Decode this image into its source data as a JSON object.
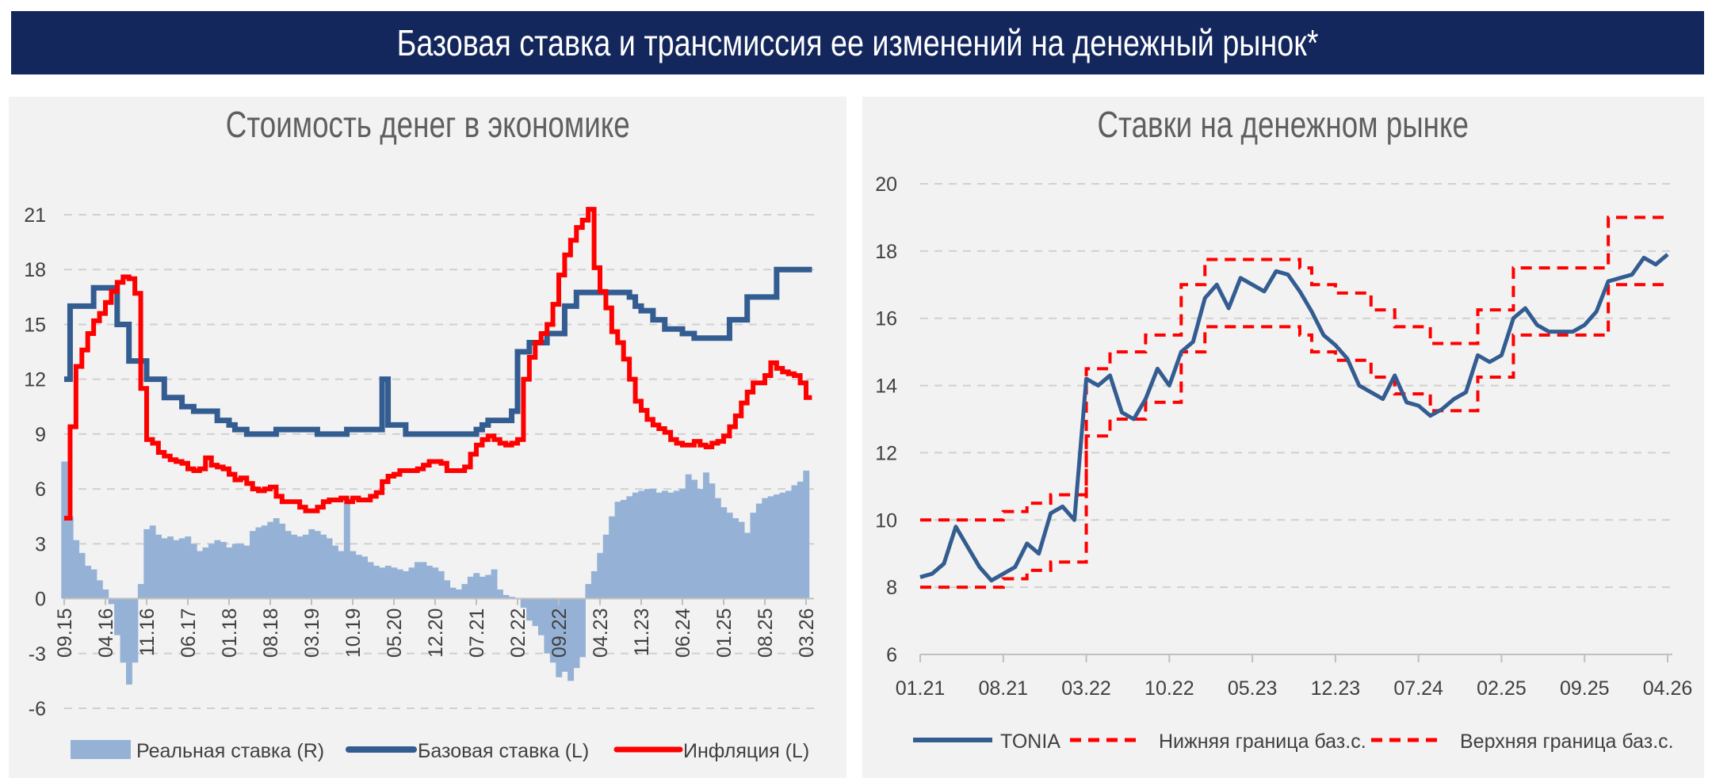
{
  "header": {
    "title": "Базовая ставка и трансмиссия ее изменений на денежный рынок*"
  },
  "colors": {
    "header_bg": "#13275c",
    "base_rate": "#335c91",
    "inflation": "#ff0000",
    "real_rate": "#95b2d6",
    "tonia": "#335c91",
    "bounds": "#ff0000",
    "panel_bg": "#f2f2f2"
  },
  "chart_data": [
    {
      "type": "bar+line",
      "title": "Стоимость денег в экономике",
      "xlabel": "",
      "ylabel": "",
      "ylim": [
        -6,
        21
      ],
      "y_ticks": [
        "-6",
        "-3",
        "0",
        "3",
        "6",
        "9",
        "12",
        "15",
        "18",
        "21"
      ],
      "x_ticks": [
        "09.15",
        "04.16",
        "11.16",
        "06.17",
        "01.18",
        "08.18",
        "03.19",
        "10.19",
        "05.20",
        "12.20",
        "07.21",
        "02.22",
        "09.22",
        "04.23",
        "11.23",
        "06.24",
        "01.25",
        "08.25",
        "03.26"
      ],
      "x_start": "09.15",
      "x_step": "1 month",
      "grid": true,
      "legend_position": "bottom",
      "legend": [
        "Реальная ставка (R)",
        "Базовая ставка (L)",
        "Инфляция (L)"
      ],
      "series": [
        {
          "name": "Реальная ставка (R)",
          "kind": "bar",
          "values": [
            7.5,
            4.5,
            3.2,
            2.5,
            1.8,
            1.6,
            1.0,
            0.5,
            -0.3,
            -2.0,
            -3.5,
            -4.7,
            -3.5,
            0.8,
            3.8,
            4.0,
            3.5,
            3.3,
            3.4,
            3.2,
            3.3,
            3.4,
            3.0,
            2.6,
            2.8,
            3.0,
            3.2,
            3.1,
            2.8,
            3.0,
            3.0,
            2.9,
            3.7,
            3.9,
            4.0,
            4.2,
            4.4,
            4.1,
            3.7,
            3.5,
            3.4,
            3.5,
            3.8,
            3.7,
            3.5,
            3.3,
            2.9,
            2.6,
            5.5,
            2.6,
            2.4,
            2.3,
            2.0,
            1.8,
            1.7,
            1.8,
            1.7,
            1.6,
            1.5,
            1.7,
            2.0,
            2.0,
            1.8,
            1.7,
            1.5,
            1.0,
            0.6,
            0.5,
            0.8,
            1.2,
            1.4,
            1.2,
            1.3,
            1.6,
            0.5,
            0.2,
            0.1,
            0.0,
            -0.5,
            -1.2,
            -1.5,
            -2.0,
            -3.0,
            -3.5,
            -4.3,
            -4.0,
            -4.5,
            -3.8,
            -3.2,
            0.8,
            1.5,
            2.5,
            3.5,
            4.5,
            5.3,
            5.4,
            5.6,
            5.8,
            5.9,
            6.0,
            6.0,
            5.8,
            5.9,
            5.8,
            5.9,
            6.0,
            6.8,
            6.5,
            6.0,
            6.9,
            6.3,
            5.5,
            5.0,
            4.7,
            4.4,
            4.2,
            3.6,
            4.7,
            5.2,
            5.5,
            5.6,
            5.7,
            5.8,
            5.9,
            6.2,
            6.4,
            7.0
          ]
        },
        {
          "name": "Базовая ставка (L)",
          "kind": "step",
          "values": [
            12,
            16,
            16,
            16,
            16,
            17,
            17,
            17,
            17,
            15,
            15,
            13,
            13,
            13,
            12,
            12,
            12,
            11,
            11,
            11,
            10.5,
            10.5,
            10.25,
            10.25,
            10.25,
            10.25,
            9.75,
            9.75,
            9.5,
            9.25,
            9.25,
            9,
            9,
            9,
            9,
            9,
            9.25,
            9.25,
            9.25,
            9.25,
            9.25,
            9.25,
            9.25,
            9,
            9,
            9,
            9,
            9,
            9.25,
            9.25,
            9.25,
            9.25,
            9.25,
            9.25,
            12,
            9.5,
            9.5,
            9.5,
            9,
            9,
            9,
            9,
            9,
            9,
            9,
            9,
            9,
            9,
            9,
            9,
            9.25,
            9.5,
            9.75,
            9.75,
            9.75,
            9.75,
            10.25,
            13.5,
            13.5,
            14,
            14,
            14,
            14.5,
            14.5,
            14.5,
            16,
            16,
            16.75,
            16.75,
            16.75,
            16.75,
            16.75,
            16.75,
            16.75,
            16.75,
            16.75,
            16.5,
            16,
            15.75,
            15.75,
            15.25,
            15.25,
            14.75,
            14.75,
            14.75,
            14.5,
            14.5,
            14.25,
            14.25,
            14.25,
            14.25,
            14.25,
            14.25,
            15.25,
            15.25,
            15.25,
            16.5,
            16.5,
            16.5,
            16.5,
            16.5,
            18,
            18,
            18,
            18,
            18,
            18
          ]
        },
        {
          "name": "Инфляция (L)",
          "kind": "step",
          "values": [
            4.4,
            9.4,
            12.7,
            13.6,
            14.5,
            15.2,
            15.6,
            16.2,
            16.8,
            17.3,
            17.6,
            17.5,
            16.7,
            11.5,
            8.7,
            8.5,
            8.0,
            7.8,
            7.6,
            7.5,
            7.4,
            7.1,
            7.0,
            7.1,
            7.7,
            7.3,
            7.2,
            7.1,
            6.8,
            6.5,
            6.6,
            6.3,
            6.0,
            5.9,
            6.0,
            6.1,
            5.6,
            5.3,
            5.3,
            5.3,
            5.0,
            4.8,
            4.8,
            5.0,
            5.3,
            5.4,
            5.4,
            5.5,
            5.3,
            5.5,
            5.4,
            5.4,
            5.6,
            5.8,
            6.4,
            6.7,
            6.8,
            7.0,
            7.0,
            7.0,
            7.1,
            7.3,
            7.5,
            7.5,
            7.4,
            7.0,
            7.0,
            7.0,
            7.2,
            7.9,
            8.4,
            8.7,
            8.9,
            8.7,
            8.5,
            8.4,
            8.5,
            8.7,
            12.0,
            13.2,
            14.0,
            14.5,
            15.0,
            16.1,
            17.7,
            18.8,
            19.6,
            20.3,
            20.7,
            21.3,
            18.1,
            16.8,
            15.9,
            14.6,
            14.0,
            13.1,
            12.0,
            10.8,
            10.3,
            9.8,
            9.5,
            9.3,
            9.1,
            8.7,
            8.5,
            8.4,
            8.4,
            8.6,
            8.4,
            8.3,
            8.5,
            8.6,
            8.9,
            9.4,
            10.0,
            10.7,
            11.3,
            11.8,
            11.8,
            12.2,
            12.9,
            12.6,
            12.4,
            12.3,
            12.2,
            11.8,
            11.0
          ]
        }
      ]
    },
    {
      "type": "line",
      "title": "Ставки на денежном рынке",
      "xlabel": "",
      "ylabel": "",
      "ylim": [
        6,
        20
      ],
      "y_ticks": [
        "6",
        "8",
        "10",
        "12",
        "14",
        "16",
        "18",
        "20"
      ],
      "x_ticks": [
        "01.21",
        "08.21",
        "03.22",
        "10.22",
        "05.23",
        "12.23",
        "07.24",
        "02.25",
        "09.25",
        "04.26"
      ],
      "x_start": "01.21",
      "x_step": "1 month",
      "grid": true,
      "legend_position": "bottom",
      "legend": [
        "TONIA",
        "Нижняя граница баз.с.",
        "Верхняя граница баз.с."
      ],
      "series": [
        {
          "name": "TONIA",
          "kind": "line",
          "values": [
            8.3,
            8.4,
            8.7,
            9.8,
            9.2,
            8.6,
            8.2,
            8.4,
            8.6,
            9.3,
            9.0,
            10.2,
            10.4,
            10.0,
            14.2,
            14.0,
            14.3,
            13.2,
            13.0,
            13.6,
            14.5,
            14.0,
            15.0,
            15.3,
            16.6,
            17.0,
            16.3,
            17.2,
            17.0,
            16.8,
            17.4,
            17.3,
            16.8,
            16.2,
            15.5,
            15.2,
            14.8,
            14.0,
            13.8,
            13.6,
            14.3,
            13.5,
            13.4,
            13.1,
            13.3,
            13.6,
            13.8,
            14.9,
            14.7,
            14.9,
            16.0,
            16.3,
            15.8,
            15.6,
            15.6,
            15.6,
            15.8,
            16.2,
            17.1,
            17.2,
            17.3,
            17.8,
            17.6,
            17.9
          ]
        },
        {
          "name": "Нижняя граница баз.с.",
          "kind": "dashed-step",
          "values": [
            8,
            8,
            8,
            8,
            8,
            8,
            8,
            8.25,
            8.25,
            8.5,
            8.5,
            8.75,
            8.75,
            8.75,
            12.5,
            12.5,
            13,
            13,
            13,
            13.5,
            13.5,
            13.5,
            15,
            15,
            15.75,
            15.75,
            15.75,
            15.75,
            15.75,
            15.75,
            15.75,
            15.75,
            15.5,
            15,
            15,
            14.75,
            14.75,
            14.75,
            14.25,
            14.25,
            13.75,
            13.75,
            13.75,
            13.25,
            13.25,
            13.25,
            13.25,
            14.25,
            14.25,
            14.25,
            15.5,
            15.5,
            15.5,
            15.5,
            15.5,
            15.5,
            15.5,
            15.5,
            17,
            17,
            17,
            17,
            17,
            17
          ]
        },
        {
          "name": "Верхняя граница баз.с.",
          "kind": "dashed-step",
          "values": [
            10,
            10,
            10,
            10,
            10,
            10,
            10,
            10.25,
            10.25,
            10.5,
            10.5,
            10.75,
            10.75,
            10.75,
            14.5,
            14.5,
            15,
            15,
            15,
            15.5,
            15.5,
            15.5,
            17,
            17,
            17.75,
            17.75,
            17.75,
            17.75,
            17.75,
            17.75,
            17.75,
            17.75,
            17.5,
            17,
            17,
            16.75,
            16.75,
            16.75,
            16.25,
            16.25,
            15.75,
            15.75,
            15.75,
            15.25,
            15.25,
            15.25,
            15.25,
            16.25,
            16.25,
            16.25,
            17.5,
            17.5,
            17.5,
            17.5,
            17.5,
            17.5,
            17.5,
            17.5,
            19,
            19,
            19,
            19,
            19,
            19
          ]
        }
      ]
    }
  ]
}
